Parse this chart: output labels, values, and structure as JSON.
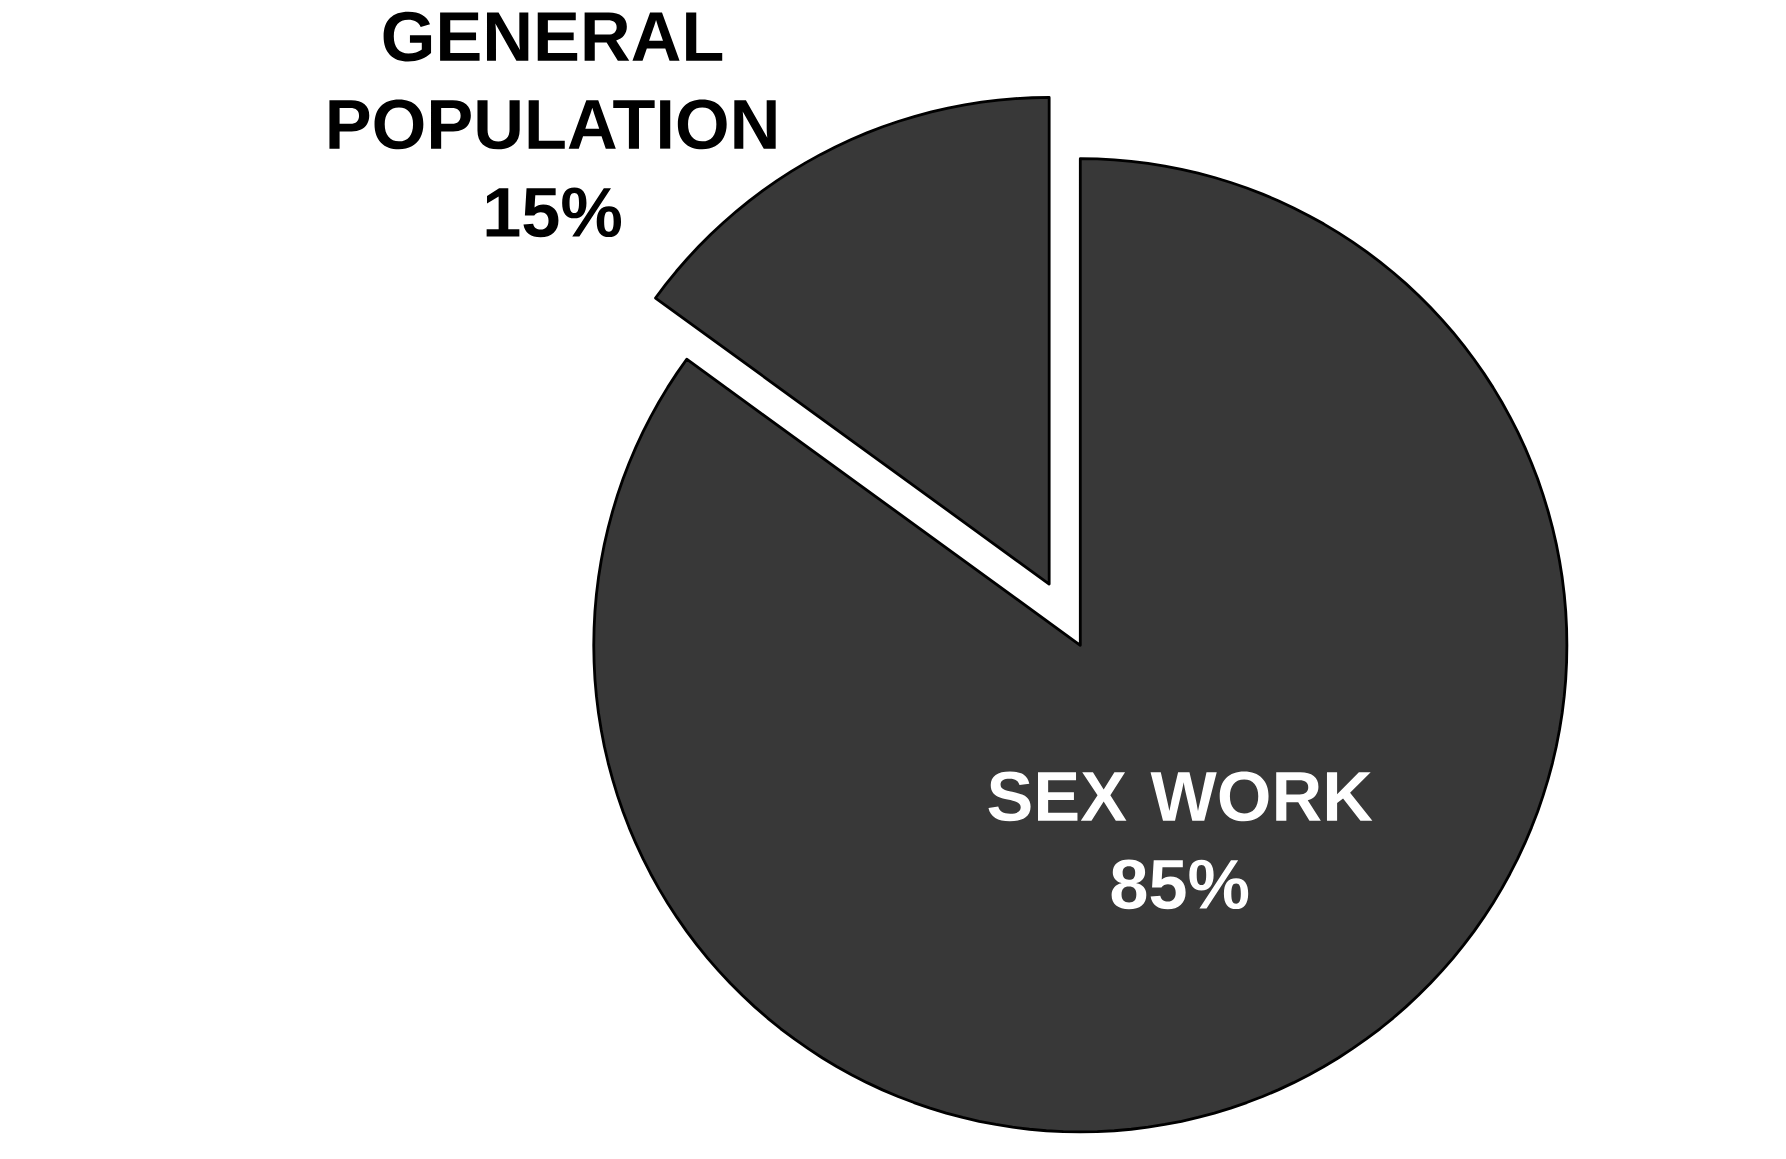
{
  "chart_data": {
    "type": "pie",
    "categories": [
      "GENERAL POPULATION",
      "SEX WORK"
    ],
    "values": [
      15,
      85
    ],
    "colors": [
      "#383838",
      "#383838"
    ],
    "value_labels": [
      "15%",
      "85%"
    ]
  }
}
